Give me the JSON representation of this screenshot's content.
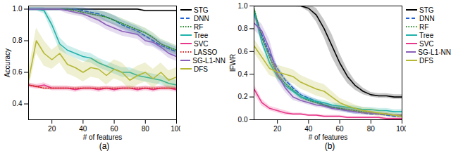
{
  "chart_data": [
    {
      "type": "line",
      "title": "(a)",
      "x_label": "# of features",
      "y_label": "Accuracy",
      "x": [
        5,
        10,
        15,
        20,
        25,
        30,
        35,
        40,
        45,
        50,
        55,
        60,
        65,
        70,
        75,
        80,
        85,
        90,
        95,
        100
      ],
      "xlim": [
        5,
        100
      ],
      "xticks": [
        20,
        40,
        60,
        80,
        100
      ],
      "ylim": [
        0.3,
        1.02
      ],
      "yticks": [
        {
          "value": 0.4,
          "label": "0.4"
        },
        {
          "value": 0.6,
          "label": "0.6"
        },
        {
          "value": 0.8,
          "label": "0.8"
        },
        {
          "value": 1.0,
          "label": "1.0"
        }
      ],
      "legend": "right",
      "series": [
        {
          "name": "STG",
          "color": "#000000",
          "line_style": "solid",
          "values": [
            1.0,
            1.0,
            1.0,
            1.0,
            1.0,
            1.0,
            1.0,
            1.0,
            1.0,
            1.0,
            1.0,
            1.0,
            1.0,
            1.0,
            1.0,
            0.99,
            0.99,
            0.99,
            0.99,
            0.99
          ],
          "error": [
            0.005,
            0.005,
            0.005,
            0.005,
            0.005,
            0.005,
            0.005,
            0.005,
            0.005,
            0.005,
            0.005,
            0.005,
            0.005,
            0.005,
            0.005,
            0.005,
            0.005,
            0.005,
            0.005,
            0.005
          ]
        },
        {
          "name": "DNN",
          "color": "#1f5fd6",
          "line_style": "dashed",
          "values": [
            1.0,
            1.0,
            1.0,
            1.0,
            1.0,
            1.0,
            1.0,
            0.99,
            0.98,
            0.97,
            0.95,
            0.93,
            0.9,
            0.88,
            0.86,
            0.83,
            0.8,
            0.77,
            0.75,
            0.73
          ],
          "error": [
            0.01,
            0.01,
            0.01,
            0.01,
            0.01,
            0.01,
            0.01,
            0.02,
            0.02,
            0.02,
            0.03,
            0.03,
            0.03,
            0.03,
            0.03,
            0.03,
            0.03,
            0.03,
            0.03,
            0.03
          ]
        },
        {
          "name": "RF",
          "color": "#2e8b2e",
          "line_style": "dotted",
          "values": [
            1.0,
            1.0,
            1.0,
            1.0,
            1.0,
            1.0,
            0.99,
            0.98,
            0.97,
            0.96,
            0.95,
            0.93,
            0.91,
            0.89,
            0.87,
            0.85,
            0.82,
            0.78,
            0.76,
            0.74
          ],
          "error": [
            0.01,
            0.01,
            0.01,
            0.01,
            0.01,
            0.01,
            0.02,
            0.02,
            0.02,
            0.03,
            0.03,
            0.03,
            0.03,
            0.03,
            0.03,
            0.03,
            0.03,
            0.03,
            0.03,
            0.03
          ]
        },
        {
          "name": "Tree",
          "color": "#20b2aa",
          "line_style": "solid",
          "values": [
            1.0,
            1.0,
            0.99,
            0.9,
            0.78,
            0.74,
            0.72,
            0.7,
            0.69,
            0.66,
            0.64,
            0.62,
            0.6,
            0.6,
            0.58,
            0.57,
            0.56,
            0.55,
            0.53,
            0.52
          ],
          "error": [
            0.01,
            0.01,
            0.02,
            0.04,
            0.04,
            0.03,
            0.03,
            0.03,
            0.03,
            0.03,
            0.03,
            0.03,
            0.03,
            0.03,
            0.03,
            0.03,
            0.03,
            0.03,
            0.03,
            0.03
          ]
        },
        {
          "name": "SVC",
          "color": "#e8388a",
          "line_style": "solid",
          "values": [
            0.52,
            0.51,
            0.52,
            0.5,
            0.5,
            0.5,
            0.49,
            0.5,
            0.5,
            0.49,
            0.5,
            0.49,
            0.5,
            0.5,
            0.49,
            0.5,
            0.49,
            0.5,
            0.5,
            0.49
          ],
          "error": [
            0.015,
            0.015,
            0.015,
            0.015,
            0.015,
            0.015,
            0.015,
            0.015,
            0.015,
            0.015,
            0.015,
            0.015,
            0.015,
            0.015,
            0.015,
            0.015,
            0.015,
            0.015,
            0.015,
            0.015
          ]
        },
        {
          "name": "LASSO",
          "color": "#d62728",
          "line_style": "dotted",
          "values": [
            0.52,
            0.51,
            0.5,
            0.5,
            0.5,
            0.5,
            0.5,
            0.5,
            0.5,
            0.5,
            0.5,
            0.5,
            0.5,
            0.5,
            0.5,
            0.5,
            0.5,
            0.5,
            0.5,
            0.5
          ],
          "error": [
            0.01,
            0.01,
            0.01,
            0.01,
            0.01,
            0.01,
            0.01,
            0.01,
            0.01,
            0.01,
            0.01,
            0.01,
            0.01,
            0.01,
            0.01,
            0.01,
            0.01,
            0.01,
            0.01,
            0.01
          ]
        },
        {
          "name": "SG-L1-NN",
          "color": "#8a5fb8",
          "line_style": "solid",
          "values": [
            1.0,
            1.0,
            1.0,
            1.0,
            1.0,
            0.99,
            0.98,
            0.97,
            0.95,
            0.93,
            0.9,
            0.88,
            0.86,
            0.85,
            0.84,
            0.8,
            0.79,
            0.76,
            0.72,
            0.7
          ],
          "error": [
            0.01,
            0.01,
            0.01,
            0.01,
            0.01,
            0.02,
            0.02,
            0.02,
            0.03,
            0.03,
            0.03,
            0.03,
            0.03,
            0.03,
            0.03,
            0.03,
            0.03,
            0.03,
            0.03,
            0.03
          ]
        },
        {
          "name": "DFS",
          "color": "#b5b832",
          "line_style": "solid",
          "values": [
            0.55,
            0.8,
            0.72,
            0.68,
            0.72,
            0.65,
            0.63,
            0.6,
            0.63,
            0.62,
            0.58,
            0.62,
            0.6,
            0.55,
            0.58,
            0.6,
            0.56,
            0.6,
            0.55,
            0.57
          ],
          "error": [
            0.06,
            0.08,
            0.08,
            0.06,
            0.06,
            0.06,
            0.06,
            0.06,
            0.06,
            0.06,
            0.06,
            0.06,
            0.06,
            0.06,
            0.06,
            0.06,
            0.06,
            0.06,
            0.06,
            0.06
          ]
        }
      ]
    },
    {
      "type": "line",
      "title": "(b)",
      "x_label": "# of features",
      "y_label": "IFWR",
      "x": [
        5,
        10,
        15,
        20,
        25,
        30,
        35,
        40,
        45,
        50,
        55,
        60,
        65,
        70,
        75,
        80,
        85,
        90,
        95,
        100
      ],
      "xlim": [
        5,
        100
      ],
      "xticks": [
        20,
        40,
        60,
        80,
        100
      ],
      "ylim": [
        0,
        1.0
      ],
      "yticks": [
        {
          "value": 0,
          "label": "0.0"
        },
        {
          "value": 0.2,
          "label": "0.2"
        },
        {
          "value": 0.4,
          "label": "0.4"
        },
        {
          "value": 0.6,
          "label": "0.6"
        },
        {
          "value": 0.8,
          "label": "0.8"
        },
        {
          "value": 1.0,
          "label": "1.0"
        }
      ],
      "legend": "right",
      "series": [
        {
          "name": "STG",
          "color": "#000000",
          "line_style": "solid",
          "values": [
            1.0,
            1.0,
            1.0,
            1.0,
            1.0,
            1.0,
            1.0,
            0.98,
            0.92,
            0.8,
            0.65,
            0.5,
            0.38,
            0.3,
            0.25,
            0.22,
            0.21,
            0.21,
            0.2,
            0.2
          ],
          "error": [
            0.005,
            0.005,
            0.005,
            0.005,
            0.005,
            0.005,
            0.01,
            0.03,
            0.06,
            0.08,
            0.1,
            0.08,
            0.06,
            0.04,
            0.03,
            0.02,
            0.02,
            0.02,
            0.02,
            0.02
          ]
        },
        {
          "name": "DNN",
          "color": "#1f5fd6",
          "line_style": "dashed",
          "values": [
            0.95,
            0.75,
            0.58,
            0.45,
            0.35,
            0.28,
            0.22,
            0.19,
            0.16,
            0.13,
            0.11,
            0.1,
            0.08,
            0.07,
            0.06,
            0.05,
            0.05,
            0.04,
            0.03,
            0.03
          ],
          "error": [
            0.03,
            0.03,
            0.03,
            0.03,
            0.02,
            0.02,
            0.02,
            0.02,
            0.02,
            0.02,
            0.02,
            0.02,
            0.02,
            0.02,
            0.01,
            0.01,
            0.01,
            0.01,
            0.01,
            0.01
          ]
        },
        {
          "name": "RF",
          "color": "#2e8b2e",
          "line_style": "dotted",
          "values": [
            0.98,
            0.72,
            0.55,
            0.4,
            0.32,
            0.26,
            0.2,
            0.17,
            0.15,
            0.13,
            0.11,
            0.1,
            0.09,
            0.08,
            0.07,
            0.06,
            0.05,
            0.05,
            0.04,
            0.04
          ],
          "error": [
            0.02,
            0.03,
            0.03,
            0.03,
            0.02,
            0.02,
            0.02,
            0.02,
            0.02,
            0.02,
            0.02,
            0.02,
            0.02,
            0.02,
            0.01,
            0.01,
            0.01,
            0.01,
            0.01,
            0.01
          ]
        },
        {
          "name": "Tree",
          "color": "#20b2aa",
          "line_style": "solid",
          "values": [
            0.95,
            0.68,
            0.5,
            0.38,
            0.3,
            0.25,
            0.2,
            0.18,
            0.16,
            0.15,
            0.13,
            0.12,
            0.11,
            0.1,
            0.09,
            0.09,
            0.08,
            0.08,
            0.07,
            0.07
          ],
          "error": [
            0.03,
            0.03,
            0.03,
            0.03,
            0.02,
            0.02,
            0.02,
            0.02,
            0.02,
            0.02,
            0.02,
            0.02,
            0.02,
            0.02,
            0.02,
            0.02,
            0.02,
            0.02,
            0.02,
            0.02
          ]
        },
        {
          "name": "SVC",
          "color": "#e8388a",
          "line_style": "solid",
          "values": [
            0.27,
            0.15,
            0.1,
            0.08,
            0.06,
            0.05,
            0.05,
            0.04,
            0.04,
            0.03,
            0.03,
            0.03,
            0.02,
            0.02,
            0.02,
            0.02,
            0.02,
            0.01,
            0.01,
            0.01
          ],
          "error": [
            0.04,
            0.03,
            0.02,
            0.02,
            0.02,
            0.01,
            0.01,
            0.01,
            0.01,
            0.01,
            0.01,
            0.01,
            0.01,
            0.01,
            0.01,
            0.01,
            0.01,
            0.01,
            0.01,
            0.01
          ]
        },
        {
          "name": "SG-L1-NN",
          "color": "#8a5fb8",
          "line_style": "solid",
          "values": [
            0.85,
            0.78,
            0.62,
            0.4,
            0.28,
            0.2,
            0.17,
            0.15,
            0.13,
            0.12,
            0.1,
            0.09,
            0.08,
            0.07,
            0.06,
            0.06,
            0.05,
            0.05,
            0.04,
            0.04
          ],
          "error": [
            0.06,
            0.06,
            0.08,
            0.06,
            0.04,
            0.03,
            0.02,
            0.02,
            0.02,
            0.02,
            0.02,
            0.02,
            0.02,
            0.02,
            0.02,
            0.02,
            0.01,
            0.01,
            0.01,
            0.01
          ]
        },
        {
          "name": "DFS",
          "color": "#b5b832",
          "line_style": "solid",
          "values": [
            0.65,
            0.55,
            0.45,
            0.42,
            0.4,
            0.38,
            0.33,
            0.3,
            0.27,
            0.25,
            0.2,
            0.15,
            0.12,
            0.1,
            0.08,
            0.07,
            0.06,
            0.05,
            0.04,
            0.03
          ],
          "error": [
            0.06,
            0.06,
            0.06,
            0.06,
            0.06,
            0.06,
            0.06,
            0.06,
            0.06,
            0.06,
            0.05,
            0.04,
            0.04,
            0.03,
            0.03,
            0.03,
            0.03,
            0.02,
            0.02,
            0.02
          ]
        }
      ]
    }
  ]
}
